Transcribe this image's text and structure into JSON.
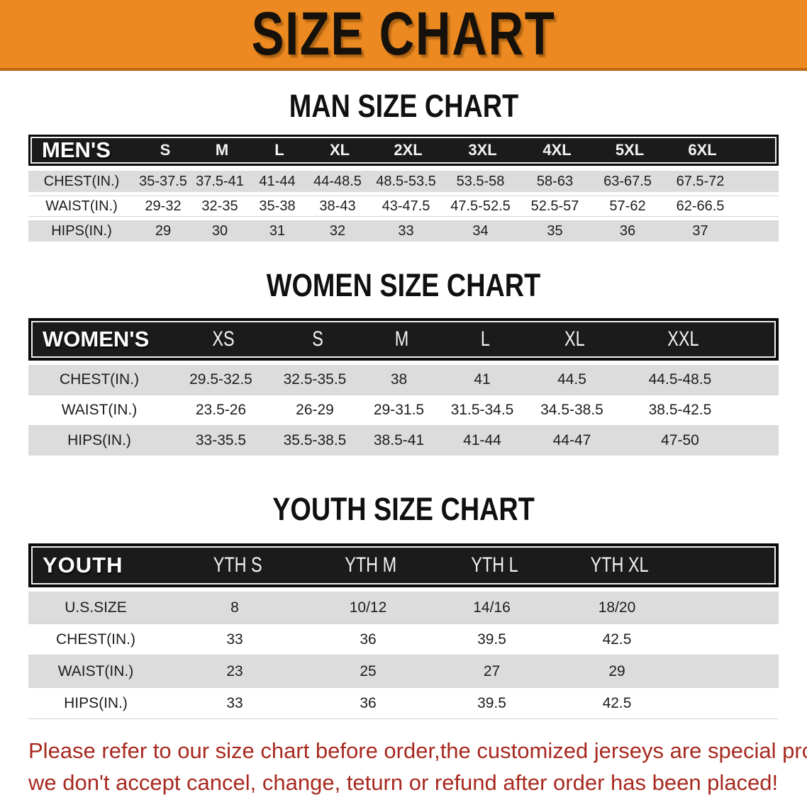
{
  "banner": {
    "title": "SIZE CHART"
  },
  "sections": {
    "men": {
      "heading": "MAN SIZE CHART",
      "table": {
        "corner": "MEN'S",
        "columns": [
          "S",
          "M",
          "L",
          "XL",
          "2XL",
          "3XL",
          "4XL",
          "5XL",
          "6XL"
        ],
        "rows": [
          {
            "label": "CHEST(IN.)",
            "values": [
              "35-37.5",
              "37.5-41",
              "41-44",
              "44-48.5",
              "48.5-53.5",
              "53.5-58",
              "58-63",
              "63-67.5",
              "67.5-72"
            ]
          },
          {
            "label": "WAIST(IN.)",
            "values": [
              "29-32",
              "32-35",
              "35-38",
              "38-43",
              "43-47.5",
              "47.5-52.5",
              "52.5-57",
              "57-62",
              "62-66.5"
            ]
          },
          {
            "label": "HIPS(IN.)",
            "values": [
              "29",
              "30",
              "31",
              "32",
              "33",
              "34",
              "35",
              "36",
              "37"
            ]
          }
        ]
      }
    },
    "women": {
      "heading": "WOMEN SIZE CHART",
      "table": {
        "corner": "WOMEN'S",
        "columns": [
          "XS",
          "S",
          "M",
          "L",
          "XL",
          "XXL"
        ],
        "rows": [
          {
            "label": "CHEST(IN.)",
            "values": [
              "29.5-32.5",
              "32.5-35.5",
              "38",
              "41",
              "44.5",
              "44.5-48.5"
            ]
          },
          {
            "label": "WAIST(IN.)",
            "values": [
              "23.5-26",
              "26-29",
              "29-31.5",
              "31.5-34.5",
              "34.5-38.5",
              "38.5-42.5"
            ]
          },
          {
            "label": "HIPS(IN.)",
            "values": [
              "33-35.5",
              "35.5-38.5",
              "38.5-41",
              "41-44",
              "44-47",
              "47-50"
            ]
          }
        ]
      }
    },
    "youth": {
      "heading": "YOUTH SIZE CHART",
      "table": {
        "corner": "YOUTH",
        "columns": [
          "YTH S",
          "YTH M",
          "YTH L",
          "YTH XL"
        ],
        "rows": [
          {
            "label": "U.S.SIZE",
            "values": [
              "8",
              "10/12",
              "14/16",
              "18/20"
            ]
          },
          {
            "label": "CHEST(IN.)",
            "values": [
              "33",
              "36",
              "39.5",
              "42.5"
            ]
          },
          {
            "label": "WAIST(IN.)",
            "values": [
              "23",
              "25",
              "27",
              "29"
            ]
          },
          {
            "label": "HIPS(IN.)",
            "values": [
              "33",
              "36",
              "39.5",
              "42.5"
            ]
          }
        ]
      }
    }
  },
  "footer": {
    "line1": "Please refer to our size chart before order,the customized jerseys are special products,",
    "line2": "we don't accept cancel, change, teturn or refund after order has been placed!"
  },
  "colors": {
    "banner_orange": "#EC8A21",
    "banner_border": "#BE6A10",
    "band_black": "#1B1B1B",
    "row_gray": "#DCDCDC",
    "disclaimer_red": "#A7291F"
  }
}
